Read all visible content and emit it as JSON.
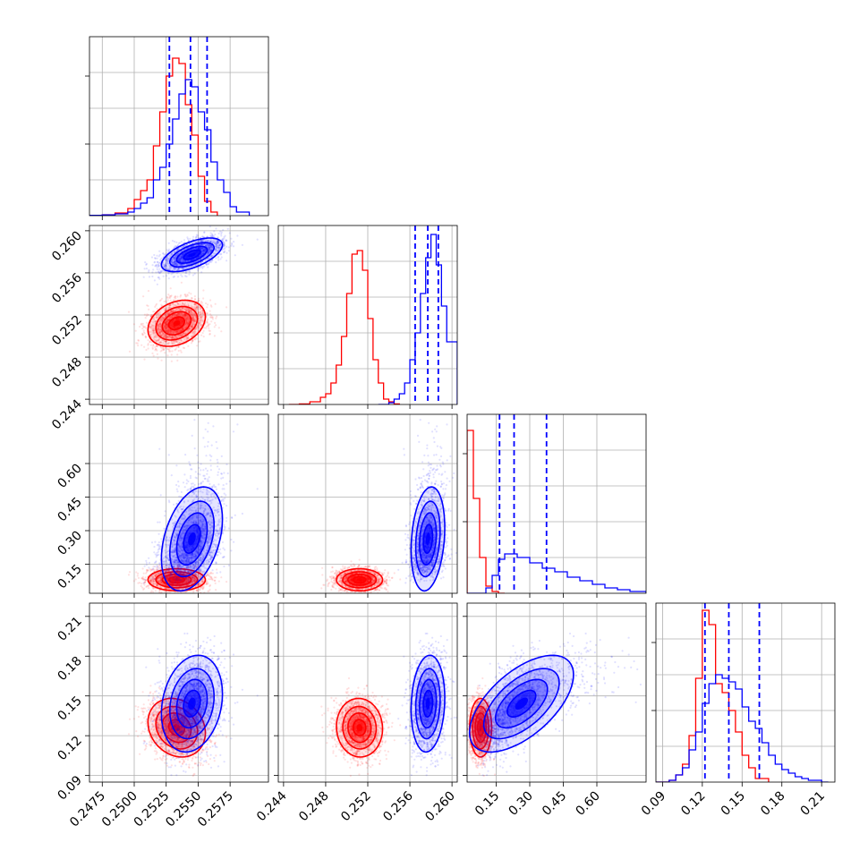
{
  "colors": {
    "series_a": "#ff0000",
    "series_b": "#0000ff"
  },
  "chart_data": {
    "type": "corner",
    "grid": true,
    "legend": "none",
    "parameters": [
      {
        "xlim": [
          0.2465,
          0.2605
        ],
        "ticks": [
          0.2475,
          0.25,
          0.2525,
          0.255,
          0.2575
        ],
        "tick_labels": [
          "0.2475",
          "0.2500",
          "0.2525",
          "0.2550",
          "0.2575"
        ]
      },
      {
        "xlim": [
          0.2435,
          0.2605
        ],
        "ticks": [
          0.244,
          0.248,
          0.252,
          0.256,
          0.26
        ],
        "tick_labels": [
          "0.244",
          "0.248",
          "0.252",
          "0.256",
          "0.260"
        ]
      },
      {
        "xlim": [
          0.02,
          0.82
        ],
        "ticks": [
          0.15,
          0.3,
          0.45,
          0.6
        ],
        "tick_labels": [
          "0.15",
          "0.30",
          "0.45",
          "0.60"
        ]
      },
      {
        "xlim": [
          0.085,
          0.22
        ],
        "ticks": [
          0.09,
          0.12,
          0.15,
          0.18,
          0.21
        ],
        "tick_labels": [
          "0.09",
          "0.12",
          "0.15",
          "0.18",
          "0.21"
        ]
      }
    ],
    "series": [
      {
        "color": "#ff0000",
        "mean": [
          0.2533,
          0.2512,
          0.06,
          0.126
        ],
        "sd": [
          0.0011,
          0.0011,
          0.025,
          0.011
        ],
        "skew_cols": [],
        "corr": [
          [
            0,
            1,
            0.3
          ],
          [
            0,
            3,
            -0.2
          ],
          [
            1,
            3,
            0.0
          ]
        ],
        "hist": [
          {
            "x": [
              0.2465,
              0.2475,
              0.2485,
              0.2495,
              0.25,
              0.2505,
              0.251,
              0.2515,
              0.252,
              0.2525,
              0.253,
              0.2535,
              0.254,
              0.2545,
              0.255,
              0.2555,
              0.256,
              0.2565
            ],
            "y": [
              0.002,
              0.005,
              0.015,
              0.04,
              0.09,
              0.14,
              0.2,
              0.39,
              0.58,
              0.78,
              0.88,
              0.85,
              0.62,
              0.45,
              0.22,
              0.08,
              0.02,
              0
            ]
          },
          {
            "x": [
              0.2445,
              0.2455,
              0.2465,
              0.2475,
              0.248,
              0.2485,
              0.249,
              0.2495,
              0.25,
              0.2505,
              0.251,
              0.2515,
              0.252,
              0.2525,
              0.253,
              0.2535,
              0.254,
              0.2545,
              0.255
            ],
            "y": [
              0,
              0.003,
              0.015,
              0.04,
              0.06,
              0.12,
              0.22,
              0.38,
              0.62,
              0.84,
              0.86,
              0.75,
              0.48,
              0.25,
              0.12,
              0.03,
              0.015,
              0.003,
              0
            ]
          },
          {
            "x": [
              0.02,
              0.048,
              0.076,
              0.104,
              0.132,
              0.16,
              0.188
            ],
            "y": [
              0.91,
              0.53,
              0.2,
              0.04,
              0.01,
              0,
              0
            ]
          },
          {
            "x": [
              0.085,
              0.095,
              0.1,
              0.105,
              0.11,
              0.115,
              0.12,
              0.125,
              0.13,
              0.135,
              0.14,
              0.145,
              0.15,
              0.155,
              0.16,
              0.17
            ],
            "y": [
              0,
              0.01,
              0.04,
              0.1,
              0.26,
              0.58,
              0.96,
              0.88,
              0.55,
              0.5,
              0.4,
              0.28,
              0.15,
              0.08,
              0.02,
              0
            ]
          }
        ]
      },
      {
        "color": "#0000ff",
        "mean": [
          0.2545,
          0.2577,
          0.24,
          0.144
        ],
        "sd": [
          0.0012,
          0.0008,
          0.1,
          0.018
        ],
        "skew_cols": [
          2
        ],
        "corr": [
          [
            0,
            1,
            0.6
          ],
          [
            0,
            2,
            0.4
          ],
          [
            0,
            3,
            0.25
          ],
          [
            2,
            3,
            0.6
          ],
          [
            1,
            2,
            0.0
          ],
          [
            1,
            3,
            0.0
          ]
        ],
        "quantiles": [
          [
            0.25275,
            0.2544,
            0.2557
          ],
          [
            0.2565,
            0.2577,
            0.2587
          ],
          [
            0.165,
            0.23,
            0.375
          ],
          [
            0.122,
            0.14,
            0.163
          ]
        ],
        "hist": [
          {
            "x": [
              0.2465,
              0.2475,
              0.2485,
              0.2495,
              0.25,
              0.2505,
              0.251,
              0.2515,
              0.252,
              0.2525,
              0.253,
              0.2535,
              0.254,
              0.2545,
              0.255,
              0.2555,
              0.256,
              0.2565,
              0.257,
              0.2575,
              0.258,
              0.259
            ],
            "y": [
              0.002,
              0.004,
              0.01,
              0.02,
              0.04,
              0.07,
              0.1,
              0.2,
              0.27,
              0.4,
              0.54,
              0.68,
              0.76,
              0.72,
              0.58,
              0.48,
              0.3,
              0.2,
              0.13,
              0.05,
              0.02,
              0
            ]
          },
          {
            "x": [
              0.253,
              0.254,
              0.2545,
              0.255,
              0.2555,
              0.256,
              0.2565,
              0.257,
              0.2575,
              0.258,
              0.2585,
              0.259,
              0.2595,
              0.2605
            ],
            "y": [
              0,
              0.01,
              0.03,
              0.06,
              0.12,
              0.25,
              0.4,
              0.62,
              0.82,
              0.95,
              0.78,
              0.55,
              0.35,
              0
            ]
          },
          {
            "x": [
              0.02,
              0.076,
              0.104,
              0.132,
              0.16,
              0.188,
              0.244,
              0.3,
              0.356,
              0.412,
              0.468,
              0.524,
              0.58,
              0.636,
              0.692,
              0.748,
              0.82
            ],
            "y": [
              0,
              0,
              0.03,
              0.1,
              0.19,
              0.22,
              0.2,
              0.17,
              0.14,
              0.12,
              0.09,
              0.07,
              0.05,
              0.03,
              0.02,
              0.01,
              0
            ]
          },
          {
            "x": [
              0.085,
              0.095,
              0.1,
              0.105,
              0.11,
              0.115,
              0.12,
              0.125,
              0.13,
              0.135,
              0.14,
              0.145,
              0.15,
              0.155,
              0.16,
              0.165,
              0.17,
              0.175,
              0.18,
              0.185,
              0.19,
              0.195,
              0.2,
              0.205,
              0.21,
              0.215
            ],
            "y": [
              0,
              0.01,
              0.04,
              0.08,
              0.18,
              0.28,
              0.44,
              0.55,
              0.6,
              0.58,
              0.56,
              0.52,
              0.42,
              0.34,
              0.3,
              0.22,
              0.15,
              0.1,
              0.07,
              0.05,
              0.03,
              0.02,
              0.01,
              0.01,
              0,
              0
            ]
          }
        ]
      }
    ]
  }
}
